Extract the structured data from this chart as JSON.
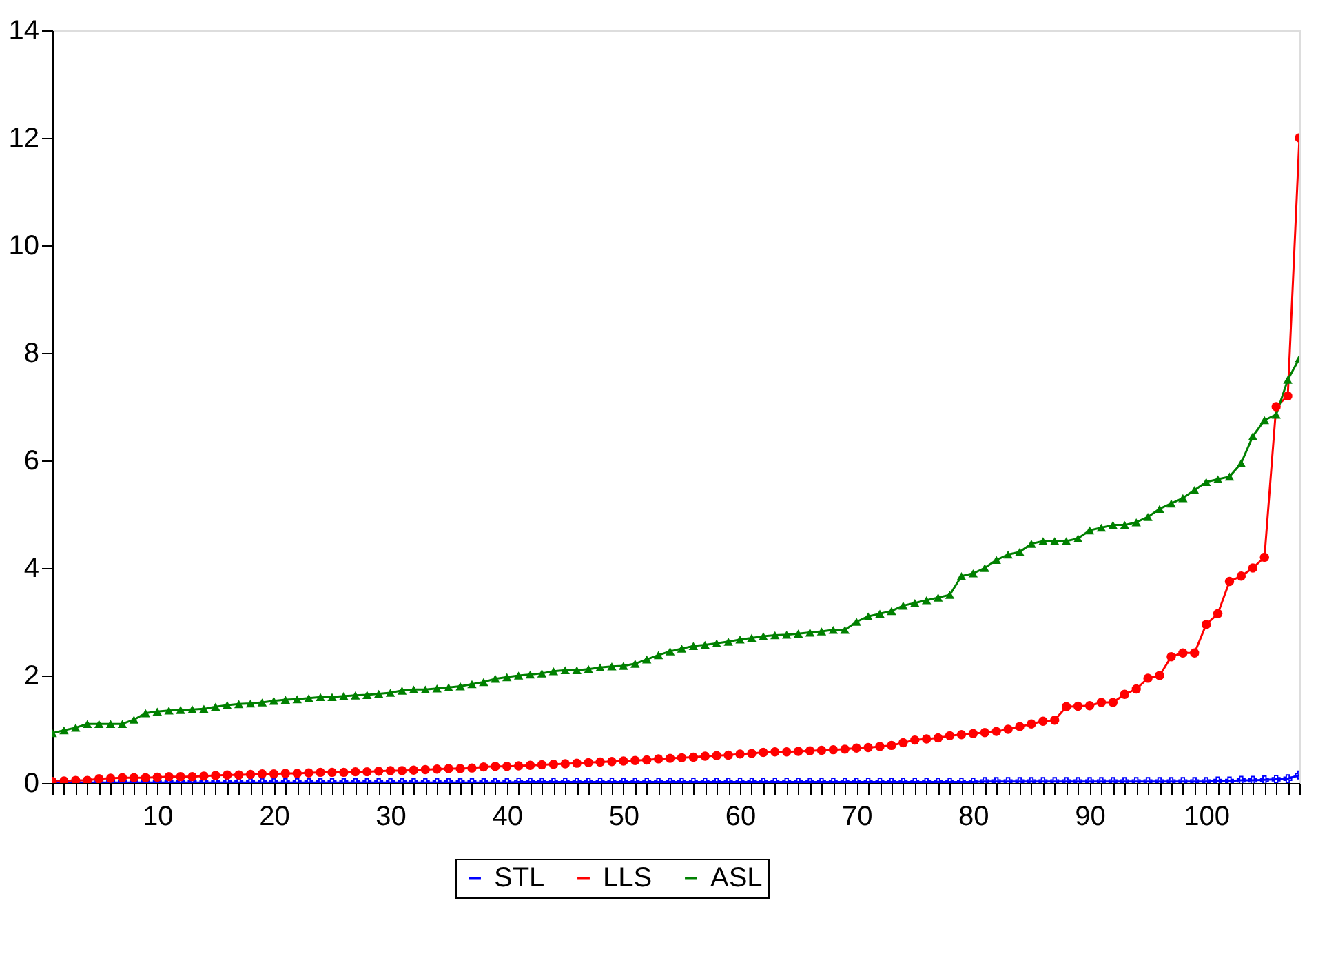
{
  "chart_data": {
    "type": "line",
    "x": [
      1,
      2,
      3,
      4,
      5,
      6,
      7,
      8,
      9,
      10,
      11,
      12,
      13,
      14,
      15,
      16,
      17,
      18,
      19,
      20,
      21,
      22,
      23,
      24,
      25,
      26,
      27,
      28,
      29,
      30,
      31,
      32,
      33,
      34,
      35,
      36,
      37,
      38,
      39,
      40,
      41,
      42,
      43,
      44,
      45,
      46,
      47,
      48,
      49,
      50,
      51,
      52,
      53,
      54,
      55,
      56,
      57,
      58,
      59,
      60,
      61,
      62,
      63,
      64,
      65,
      66,
      67,
      68,
      69,
      70,
      71,
      72,
      73,
      74,
      75,
      76,
      77,
      78,
      79,
      80,
      81,
      82,
      83,
      84,
      85,
      86,
      87,
      88,
      89,
      90,
      91,
      92,
      93,
      94,
      95,
      96,
      97,
      98,
      99,
      100,
      101,
      102,
      103,
      104,
      105,
      106,
      107,
      108
    ],
    "xlim": [
      1,
      108
    ],
    "ylim": [
      0,
      14
    ],
    "yticks": [
      0,
      2,
      4,
      6,
      8,
      10,
      12,
      14
    ],
    "xticks": [
      {
        "value": 1,
        "label": null
      },
      {
        "value": 2,
        "label": null
      },
      {
        "value": 3,
        "label": null
      },
      {
        "value": 4,
        "label": null
      },
      {
        "value": 5,
        "label": null
      },
      {
        "value": 6,
        "label": null
      },
      {
        "value": 7,
        "label": null
      },
      {
        "value": 8,
        "label": null
      },
      {
        "value": 9,
        "label": null
      },
      10,
      {
        "value": 11,
        "label": null
      },
      {
        "value": 12,
        "label": null
      },
      {
        "value": 13,
        "label": null
      },
      {
        "value": 14,
        "label": null
      },
      {
        "value": 15,
        "label": null
      },
      {
        "value": 16,
        "label": null
      },
      {
        "value": 17,
        "label": null
      },
      {
        "value": 18,
        "label": null
      },
      {
        "value": 19,
        "label": null
      },
      20,
      {
        "value": 21,
        "label": null
      },
      {
        "value": 22,
        "label": null
      },
      {
        "value": 23,
        "label": null
      },
      {
        "value": 24,
        "label": null
      },
      {
        "value": 25,
        "label": null
      },
      {
        "value": 26,
        "label": null
      },
      {
        "value": 27,
        "label": null
      },
      {
        "value": 28,
        "label": null
      },
      {
        "value": 29,
        "label": null
      },
      30,
      {
        "value": 31,
        "label": null
      },
      {
        "value": 32,
        "label": null
      },
      {
        "value": 33,
        "label": null
      },
      {
        "value": 34,
        "label": null
      },
      {
        "value": 35,
        "label": null
      },
      {
        "value": 36,
        "label": null
      },
      {
        "value": 37,
        "label": null
      },
      {
        "value": 38,
        "label": null
      },
      {
        "value": 39,
        "label": null
      },
      40,
      {
        "value": 41,
        "label": null
      },
      {
        "value": 42,
        "label": null
      },
      {
        "value": 43,
        "label": null
      },
      {
        "value": 44,
        "label": null
      },
      {
        "value": 45,
        "label": null
      },
      {
        "value": 46,
        "label": null
      },
      {
        "value": 47,
        "label": null
      },
      {
        "value": 48,
        "label": null
      },
      {
        "value": 49,
        "label": null
      },
      50,
      {
        "value": 51,
        "label": null
      },
      {
        "value": 52,
        "label": null
      },
      {
        "value": 53,
        "label": null
      },
      {
        "value": 54,
        "label": null
      },
      {
        "value": 55,
        "label": null
      },
      {
        "value": 56,
        "label": null
      },
      {
        "value": 57,
        "label": null
      },
      {
        "value": 58,
        "label": null
      },
      {
        "value": 59,
        "label": null
      },
      60,
      {
        "value": 61,
        "label": null
      },
      {
        "value": 62,
        "label": null
      },
      {
        "value": 63,
        "label": null
      },
      {
        "value": 64,
        "label": null
      },
      {
        "value": 65,
        "label": null
      },
      {
        "value": 66,
        "label": null
      },
      {
        "value": 67,
        "label": null
      },
      {
        "value": 68,
        "label": null
      },
      {
        "value": 69,
        "label": null
      },
      70,
      {
        "value": 71,
        "label": null
      },
      {
        "value": 72,
        "label": null
      },
      {
        "value": 73,
        "label": null
      },
      {
        "value": 74,
        "label": null
      },
      {
        "value": 75,
        "label": null
      },
      {
        "value": 76,
        "label": null
      },
      {
        "value": 77,
        "label": null
      },
      {
        "value": 78,
        "label": null
      },
      {
        "value": 79,
        "label": null
      },
      80,
      {
        "value": 81,
        "label": null
      },
      {
        "value": 82,
        "label": null
      },
      {
        "value": 83,
        "label": null
      },
      {
        "value": 84,
        "label": null
      },
      {
        "value": 85,
        "label": null
      },
      {
        "value": 86,
        "label": null
      },
      {
        "value": 87,
        "label": null
      },
      {
        "value": 88,
        "label": null
      },
      {
        "value": 89,
        "label": null
      },
      90,
      {
        "value": 91,
        "label": null
      },
      {
        "value": 92,
        "label": null
      },
      {
        "value": 93,
        "label": null
      },
      {
        "value": 94,
        "label": null
      },
      {
        "value": 95,
        "label": null
      },
      {
        "value": 96,
        "label": null
      },
      {
        "value": 97,
        "label": null
      },
      {
        "value": 98,
        "label": null
      },
      {
        "value": 99,
        "label": null
      },
      100,
      {
        "value": 101,
        "label": null
      },
      {
        "value": 102,
        "label": null
      },
      {
        "value": 103,
        "label": null
      },
      {
        "value": 104,
        "label": null
      },
      {
        "value": 105,
        "label": null
      },
      {
        "value": 106,
        "label": null
      },
      {
        "value": 107,
        "label": null
      },
      {
        "value": 108,
        "label": null
      }
    ],
    "grid": false,
    "legend": "bottom",
    "line_style": "solid",
    "series": [
      {
        "name": "STL",
        "color": "#0000ff",
        "marker": "cross",
        "values": [
          0.01,
          0.01,
          0.01,
          0.01,
          0.01,
          0.01,
          0.01,
          0.01,
          0.01,
          0.01,
          0.01,
          0.01,
          0.01,
          0.01,
          0.01,
          0.01,
          0.01,
          0.01,
          0.01,
          0.01,
          0.01,
          0.01,
          0.01,
          0.01,
          0.01,
          0.01,
          0.01,
          0.01,
          0.01,
          0.01,
          0.01,
          0.01,
          0.01,
          0.01,
          0.01,
          0.01,
          0.01,
          0.01,
          0.01,
          0.01,
          0.02,
          0.02,
          0.02,
          0.02,
          0.02,
          0.02,
          0.02,
          0.02,
          0.02,
          0.02,
          0.02,
          0.02,
          0.02,
          0.02,
          0.02,
          0.02,
          0.02,
          0.02,
          0.02,
          0.02,
          0.02,
          0.02,
          0.02,
          0.02,
          0.02,
          0.02,
          0.02,
          0.02,
          0.02,
          0.02,
          0.02,
          0.02,
          0.02,
          0.02,
          0.02,
          0.02,
          0.02,
          0.02,
          0.02,
          0.02,
          0.03,
          0.03,
          0.03,
          0.03,
          0.03,
          0.03,
          0.03,
          0.03,
          0.03,
          0.03,
          0.03,
          0.03,
          0.03,
          0.03,
          0.03,
          0.03,
          0.03,
          0.03,
          0.03,
          0.03,
          0.04,
          0.04,
          0.05,
          0.05,
          0.06,
          0.07,
          0.08,
          0.15
        ]
      },
      {
        "name": "LLS",
        "color": "#ff0000",
        "marker": "circle",
        "values": [
          0.03,
          0.04,
          0.05,
          0.05,
          0.08,
          0.09,
          0.1,
          0.1,
          0.1,
          0.11,
          0.12,
          0.12,
          0.12,
          0.13,
          0.14,
          0.15,
          0.15,
          0.16,
          0.17,
          0.17,
          0.18,
          0.18,
          0.19,
          0.2,
          0.2,
          0.2,
          0.21,
          0.21,
          0.22,
          0.23,
          0.23,
          0.24,
          0.25,
          0.26,
          0.27,
          0.27,
          0.28,
          0.3,
          0.31,
          0.31,
          0.32,
          0.33,
          0.34,
          0.35,
          0.36,
          0.37,
          0.38,
          0.39,
          0.4,
          0.41,
          0.42,
          0.43,
          0.45,
          0.46,
          0.47,
          0.48,
          0.5,
          0.51,
          0.52,
          0.54,
          0.55,
          0.57,
          0.58,
          0.58,
          0.59,
          0.6,
          0.61,
          0.62,
          0.63,
          0.65,
          0.66,
          0.68,
          0.7,
          0.75,
          0.8,
          0.82,
          0.84,
          0.88,
          0.9,
          0.92,
          0.94,
          0.96,
          1.0,
          1.05,
          1.1,
          1.15,
          1.17,
          1.42,
          1.43,
          1.44,
          1.5,
          1.5,
          1.65,
          1.75,
          1.95,
          2.0,
          2.35,
          2.42,
          2.42,
          2.95,
          3.15,
          3.75,
          3.85,
          4.0,
          4.2,
          7.0,
          7.2,
          12.0
        ]
      },
      {
        "name": "ASL",
        "color": "#008000",
        "marker": "triangle",
        "values": [
          0.93,
          0.98,
          1.03,
          1.1,
          1.1,
          1.1,
          1.1,
          1.18,
          1.3,
          1.33,
          1.35,
          1.36,
          1.37,
          1.38,
          1.42,
          1.45,
          1.47,
          1.48,
          1.5,
          1.53,
          1.55,
          1.56,
          1.58,
          1.6,
          1.6,
          1.62,
          1.63,
          1.64,
          1.66,
          1.68,
          1.72,
          1.74,
          1.74,
          1.76,
          1.78,
          1.8,
          1.84,
          1.88,
          1.94,
          1.97,
          2.0,
          2.02,
          2.04,
          2.08,
          2.1,
          2.1,
          2.12,
          2.15,
          2.17,
          2.18,
          2.22,
          2.3,
          2.38,
          2.45,
          2.5,
          2.55,
          2.57,
          2.6,
          2.63,
          2.67,
          2.7,
          2.73,
          2.75,
          2.76,
          2.78,
          2.8,
          2.82,
          2.85,
          2.85,
          3.0,
          3.1,
          3.15,
          3.2,
          3.3,
          3.35,
          3.4,
          3.45,
          3.5,
          3.85,
          3.9,
          4.0,
          4.15,
          4.25,
          4.3,
          4.45,
          4.5,
          4.5,
          4.5,
          4.55,
          4.7,
          4.75,
          4.8,
          4.8,
          4.85,
          4.95,
          5.1,
          5.2,
          5.3,
          5.45,
          5.6,
          5.65,
          5.7,
          5.95,
          6.45,
          6.75,
          6.85,
          7.5,
          7.9
        ]
      }
    ]
  }
}
